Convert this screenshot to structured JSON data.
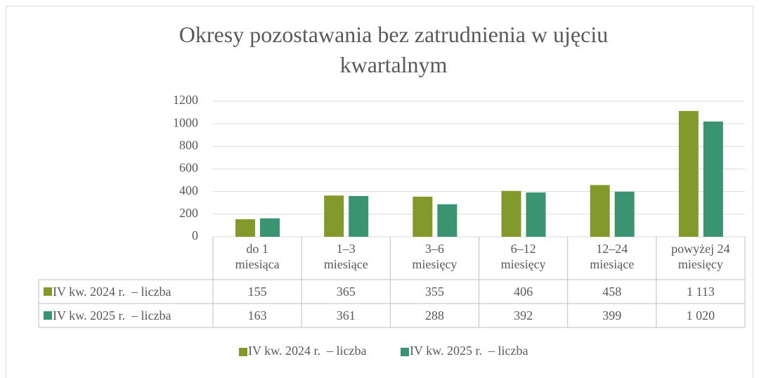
{
  "chart_data": {
    "type": "bar",
    "title": "Okresy pozostawania bez zatrudnienia w ujęciu\nkwartalnym",
    "categories": [
      "do 1\nmiesiąca",
      "1–3\nmiesiące",
      "3–6\nmiesięcy",
      "6–12\nmiesięcy",
      "12–24\nmiesiące",
      "powyżej 24\nmiesięcy"
    ],
    "series": [
      {
        "name": "IV kw. 2024 r.  – liczba",
        "color": "#84992c",
        "values": [
          155,
          365,
          355,
          406,
          458,
          1113
        ],
        "value_labels": [
          "155",
          "365",
          "355",
          "406",
          "458",
          "1 113"
        ]
      },
      {
        "name": "IV kw. 2025 r.  – liczba",
        "color": "#3a9472",
        "values": [
          163,
          361,
          288,
          392,
          399,
          1020
        ],
        "value_labels": [
          "163",
          "361",
          "288",
          "392",
          "399",
          "1 020"
        ]
      }
    ],
    "ylim": [
      0,
      1200
    ],
    "yticks": [
      0,
      200,
      400,
      600,
      800,
      1000,
      1200
    ],
    "grid": true,
    "legend": "bottom",
    "data_table": true
  }
}
